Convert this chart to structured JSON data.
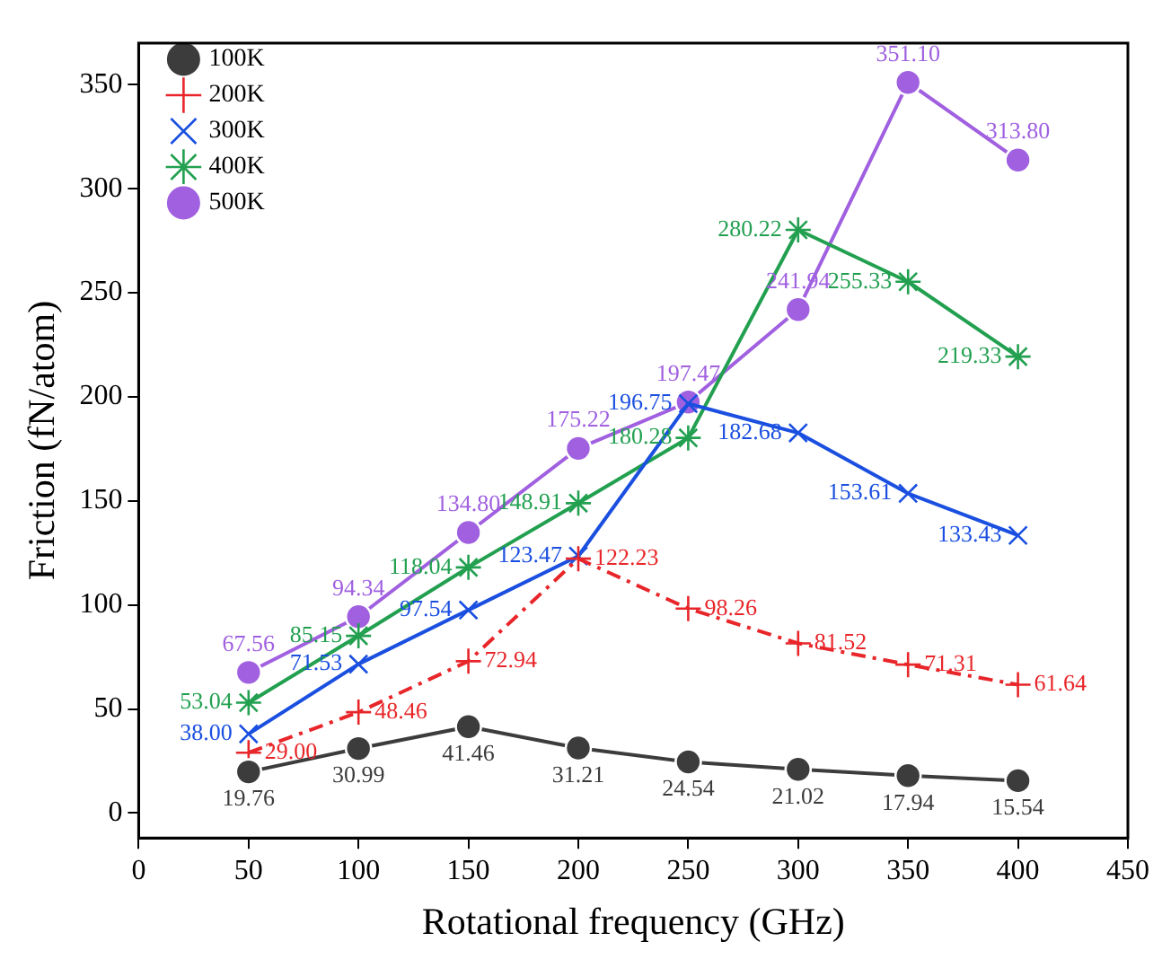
{
  "chart_data": {
    "type": "line",
    "xlabel": "Rotational frequency (GHz)",
    "ylabel": "Friction (fN/atom)",
    "x": [
      50,
      100,
      150,
      200,
      250,
      300,
      350,
      400
    ],
    "series": [
      {
        "name": "100K",
        "color": "#3c3c3c",
        "marker": "circle",
        "line_style": "solid",
        "values": [
          19.76,
          30.99,
          41.46,
          31.21,
          24.54,
          21.02,
          17.94,
          15.54
        ],
        "value_labels": [
          "19.76",
          "30.99",
          "41.46",
          "31.21",
          "24.54",
          "21.02",
          "17.94",
          "15.54"
        ]
      },
      {
        "name": "200K",
        "color": "#e8262a",
        "marker": "cross",
        "line_style": "dashed",
        "values": [
          29.0,
          48.46,
          72.94,
          122.23,
          98.26,
          81.52,
          71.31,
          61.64
        ],
        "value_labels": [
          "29.00",
          "48.46",
          "72.94",
          "122.23",
          "98.26",
          "81.52",
          "71.31",
          "61.64"
        ]
      },
      {
        "name": "300K",
        "color": "#1a4fe0",
        "marker": "cross",
        "line_style": "solid",
        "values": [
          38.0,
          71.53,
          97.54,
          123.47,
          196.75,
          182.68,
          153.61,
          133.43
        ],
        "value_labels": [
          "38.00",
          "71.53",
          "97.54",
          "123.47",
          "196.75",
          "182.68",
          "153.61",
          "133.43"
        ]
      },
      {
        "name": "400K",
        "color": "#22a050",
        "marker": "cross",
        "line_style": "solid",
        "values": [
          53.04,
          85.15,
          118.04,
          148.91,
          180.28,
          280.22,
          255.33,
          219.33
        ],
        "value_labels": [
          "53.04",
          "85.15",
          "118.04",
          "148.91",
          "180.28",
          "280.22",
          "255.33",
          "219.33"
        ]
      },
      {
        "name": "500K",
        "color": "#a060e0",
        "marker": "circle",
        "line_style": "solid",
        "values": [
          67.56,
          94.34,
          134.8,
          175.22,
          197.47,
          241.94,
          351.1,
          313.8
        ],
        "value_labels": [
          "67.56",
          "94.34",
          "134.80",
          "175.22",
          "197.47",
          "241.94",
          "351.10",
          "313.80"
        ]
      }
    ],
    "xlim": [
      0,
      450
    ],
    "xticks": [
      0,
      50,
      100,
      150,
      200,
      250,
      300,
      350,
      400,
      450
    ],
    "ylim": [
      -12,
      370
    ],
    "yticks": [
      0,
      50,
      100,
      150,
      200,
      250,
      300,
      350
    ],
    "legend": "top left",
    "grid": false
  }
}
